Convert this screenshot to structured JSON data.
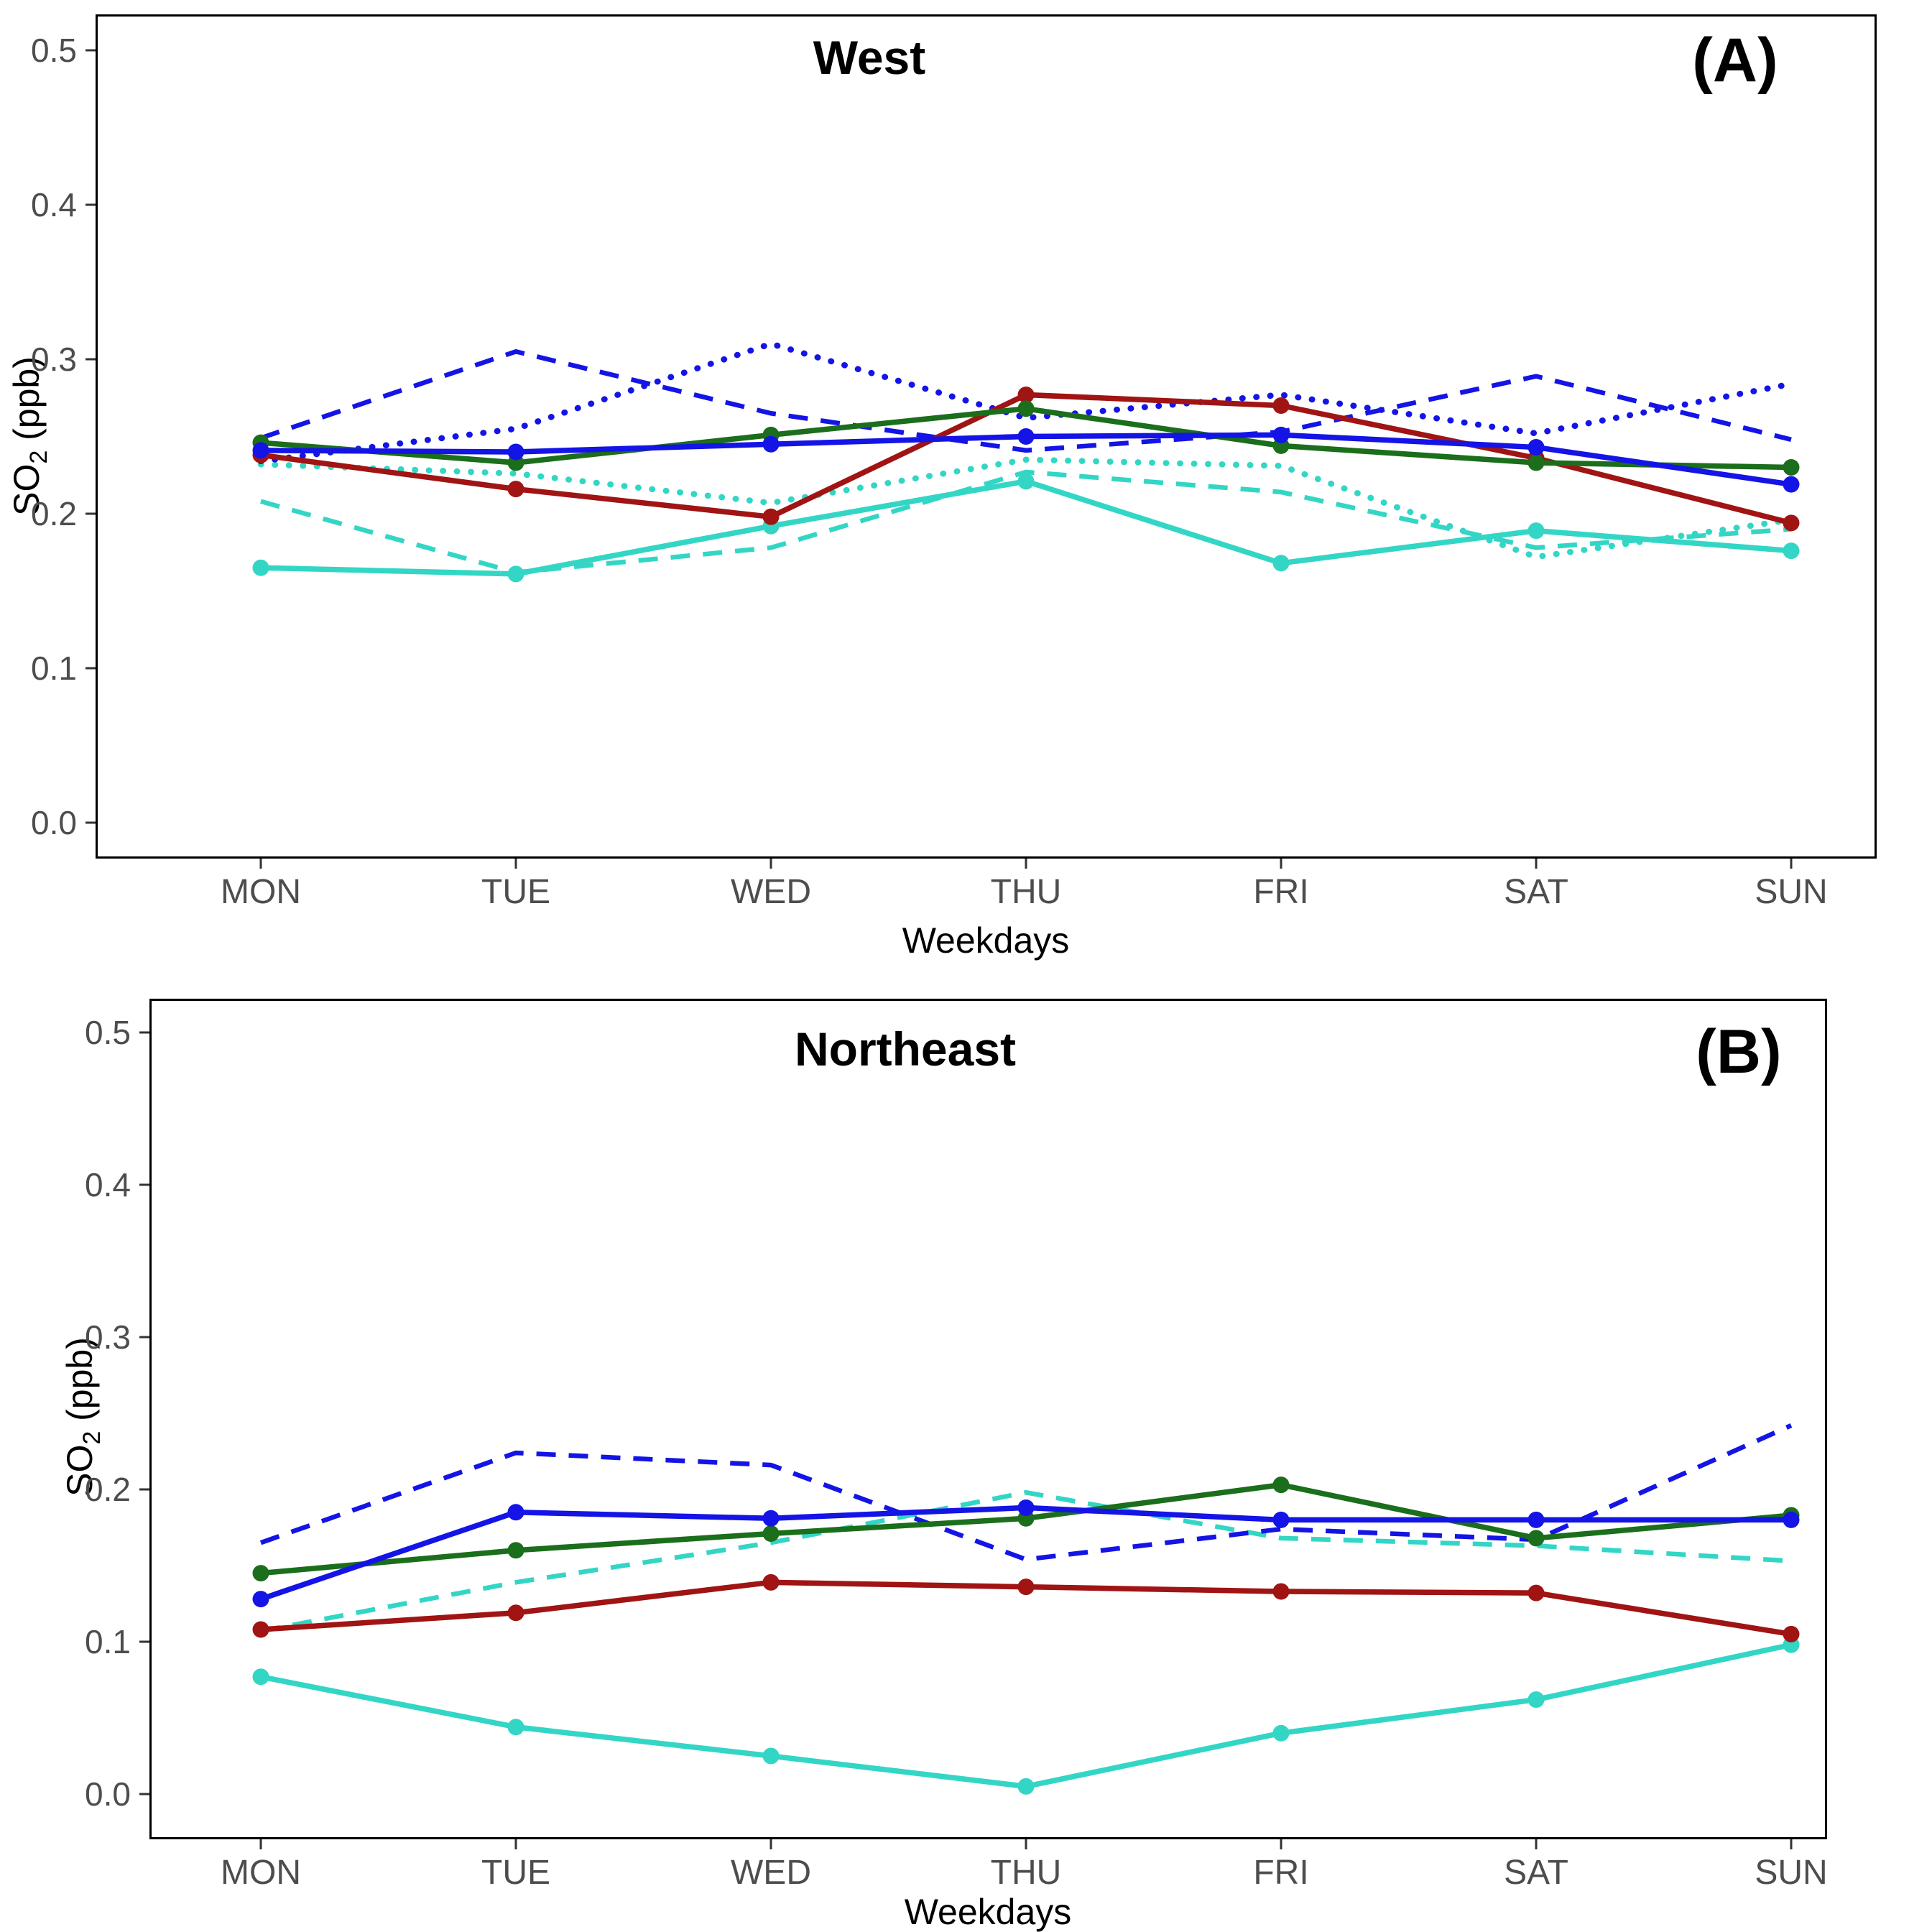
{
  "figure": {
    "background": "#ffffff",
    "axis_text_color": "#4d4d4d",
    "axis_line_color": "#000000"
  },
  "chart_data": [
    {
      "type": "line",
      "panel": "A",
      "title": "West",
      "tag": "(A)",
      "xlabel": "Weekdays",
      "ylabel_prefix": "SO",
      "ylabel_sub": "2",
      "ylabel_suffix": " (ppb)",
      "categories": [
        "MON",
        "TUE",
        "WED",
        "THU",
        "FRI",
        "SAT",
        "SUN"
      ],
      "y_tick_labels": [
        "0.0",
        "0.1",
        "0.2",
        "0.3",
        "0.4",
        "0.5"
      ],
      "y_ticks": [
        0.0,
        0.1,
        0.2,
        0.3,
        0.4,
        0.5
      ],
      "ylim": [
        0.0,
        0.52
      ],
      "grid": false,
      "legend": "none",
      "series": [
        {
          "name": "cyan-dashed",
          "color": "#33D6C5",
          "style": "dashed",
          "marker": false,
          "values": [
            0.208,
            0.162,
            0.178,
            0.227,
            0.214,
            0.178,
            0.19
          ]
        },
        {
          "name": "cyan-dotted",
          "color": "#33D6C5",
          "style": "dotted",
          "marker": false,
          "values": [
            0.232,
            0.226,
            0.207,
            0.235,
            0.231,
            0.172,
            0.196
          ]
        },
        {
          "name": "blue-dashed",
          "color": "#1414E6",
          "style": "dashed",
          "marker": false,
          "values": [
            0.249,
            0.305,
            0.265,
            0.241,
            0.253,
            0.289,
            0.248
          ]
        },
        {
          "name": "blue-dotted",
          "color": "#1414E6",
          "style": "dotted",
          "marker": false,
          "values": [
            0.234,
            0.255,
            0.31,
            0.262,
            0.277,
            0.252,
            0.284
          ]
        },
        {
          "name": "cyan-solid",
          "color": "#33D6C5",
          "style": "solid",
          "marker": true,
          "values": [
            0.165,
            0.161,
            0.192,
            0.221,
            0.168,
            0.189,
            0.176
          ]
        },
        {
          "name": "red-solid",
          "color": "#A01414",
          "style": "solid",
          "marker": true,
          "values": [
            0.238,
            0.216,
            0.198,
            0.277,
            0.27,
            0.236,
            0.194
          ]
        },
        {
          "name": "green-solid",
          "color": "#1B6E1B",
          "style": "solid",
          "marker": true,
          "values": [
            0.246,
            0.233,
            0.251,
            0.268,
            0.244,
            0.233,
            0.23
          ]
        },
        {
          "name": "blue-solid",
          "color": "#1414E6",
          "style": "solid",
          "marker": true,
          "values": [
            0.241,
            0.24,
            0.245,
            0.25,
            0.251,
            0.243,
            0.219
          ]
        }
      ]
    },
    {
      "type": "line",
      "panel": "B",
      "title": "Northeast",
      "tag": "(B)",
      "xlabel": "Weekdays",
      "ylabel_prefix": "SO",
      "ylabel_sub": "2",
      "ylabel_suffix": " (ppb)",
      "categories": [
        "MON",
        "TUE",
        "WED",
        "THU",
        "FRI",
        "SAT",
        "SUN"
      ],
      "y_tick_labels": [
        "0.0",
        "0.1",
        "0.2",
        "0.3",
        "0.4",
        "0.5"
      ],
      "y_ticks": [
        0.0,
        0.1,
        0.2,
        0.3,
        0.4,
        0.5
      ],
      "ylim": [
        0.0,
        0.52
      ],
      "grid": false,
      "legend": "none",
      "series": [
        {
          "name": "cyan-dashed",
          "color": "#33D6C5",
          "style": "dashed",
          "marker": false,
          "values": [
            0.107,
            0.139,
            0.165,
            0.198,
            0.168,
            0.163,
            0.153
          ]
        },
        {
          "name": "blue-dashed",
          "color": "#1414E6",
          "style": "dashed",
          "marker": false,
          "values": [
            0.165,
            0.224,
            0.216,
            0.154,
            0.174,
            0.167,
            0.242
          ]
        },
        {
          "name": "cyan-solid",
          "color": "#33D6C5",
          "style": "solid",
          "marker": true,
          "values": [
            0.077,
            0.044,
            0.025,
            0.005,
            0.04,
            0.062,
            0.098
          ]
        },
        {
          "name": "red-solid",
          "color": "#A01414",
          "style": "solid",
          "marker": true,
          "values": [
            0.108,
            0.119,
            0.139,
            0.136,
            0.133,
            0.132,
            0.105
          ]
        },
        {
          "name": "green-solid",
          "color": "#1B6E1B",
          "style": "solid",
          "marker": true,
          "values": [
            0.145,
            0.16,
            0.171,
            0.181,
            0.203,
            0.168,
            0.183
          ]
        },
        {
          "name": "blue-solid",
          "color": "#1414E6",
          "style": "solid",
          "marker": true,
          "values": [
            0.128,
            0.185,
            0.181,
            0.188,
            0.18,
            0.18,
            0.18
          ]
        }
      ]
    }
  ]
}
